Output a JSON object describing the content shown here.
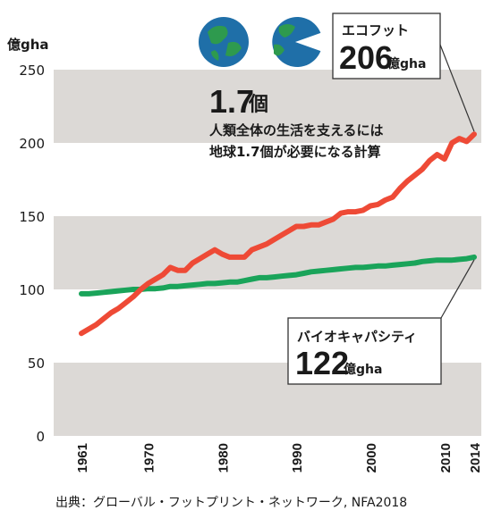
{
  "colors": {
    "band": "#dcd9d6",
    "eco": "#ee4a36",
    "bio": "#1aa45a",
    "globe_sea": "#1f6fa8",
    "globe_land": "#2e9a4e",
    "box_border": "#333333"
  },
  "icons": [
    "earth-globe-icon",
    "bitten-earth-globe-icon"
  ],
  "chart_data": {
    "type": "line",
    "ylabel": "億gha",
    "ylim": [
      0,
      250
    ],
    "yticks": [
      0,
      50,
      100,
      150,
      200,
      250
    ],
    "xlim": [
      1961,
      2014
    ],
    "xticks": [
      1961,
      1970,
      1980,
      1990,
      2000,
      2010,
      2014
    ],
    "grid": "alternating horizontal bands",
    "series": [
      {
        "key": "eco",
        "x": [
          1961,
          1962,
          1963,
          1964,
          1965,
          1966,
          1967,
          1968,
          1969,
          1970,
          1971,
          1972,
          1973,
          1974,
          1975,
          1976,
          1977,
          1978,
          1979,
          1980,
          1981,
          1982,
          1983,
          1984,
          1985,
          1986,
          1987,
          1988,
          1989,
          1990,
          1991,
          1992,
          1993,
          1994,
          1995,
          1996,
          1997,
          1998,
          1999,
          2000,
          2001,
          2002,
          2003,
          2004,
          2005,
          2006,
          2007,
          2008,
          2009,
          2010,
          2011,
          2012,
          2013,
          2014
        ],
        "values": [
          70,
          73,
          76,
          80,
          84,
          87,
          91,
          95,
          100,
          104,
          107,
          110,
          115,
          113,
          113,
          118,
          121,
          124,
          127,
          124,
          122,
          122,
          122,
          127,
          129,
          131,
          134,
          137,
          140,
          143,
          143,
          144,
          144,
          146,
          148,
          152,
          153,
          153,
          154,
          157,
          158,
          161,
          163,
          169,
          174,
          178,
          182,
          188,
          192,
          189,
          200,
          203,
          201,
          206
        ]
      },
      {
        "key": "bio",
        "x": [
          1961,
          1962,
          1963,
          1964,
          1965,
          1966,
          1967,
          1968,
          1969,
          1970,
          1971,
          1972,
          1973,
          1974,
          1975,
          1976,
          1977,
          1978,
          1979,
          1980,
          1981,
          1982,
          1983,
          1984,
          1985,
          1986,
          1987,
          1988,
          1989,
          1990,
          1991,
          1992,
          1993,
          1994,
          1995,
          1996,
          1997,
          1998,
          1999,
          2000,
          2001,
          2002,
          2003,
          2004,
          2005,
          2006,
          2007,
          2008,
          2009,
          2010,
          2011,
          2012,
          2013,
          2014
        ],
        "values": [
          97,
          97,
          97.5,
          98,
          98.5,
          99,
          99.5,
          100,
          100,
          100.5,
          100.5,
          101,
          102,
          102,
          102.5,
          103,
          103.5,
          104,
          104,
          104.5,
          105,
          105,
          106,
          107,
          108,
          108,
          108.5,
          109,
          109.5,
          110,
          111,
          112,
          112.5,
          113,
          113.5,
          114,
          114.5,
          115,
          115,
          115.5,
          116,
          116,
          116.5,
          117,
          117.5,
          118,
          119,
          119.5,
          120,
          120,
          120,
          120.5,
          121,
          122
        ]
      }
    ],
    "annotations": {
      "factor_value": "1.7",
      "factor_unit": "個",
      "factor_line1": "人類全体の生活を支えるには",
      "factor_line2": "地球1.7個が必要になる計算",
      "eco_label": "エコフット",
      "eco_value": "206",
      "eco_unit": "億gha",
      "bio_label": "バイオキャパシティ",
      "bio_value": "122",
      "bio_unit": "億gha"
    }
  },
  "source": "出典：グローバル・フットプリント・ネットワーク, NFA2018"
}
